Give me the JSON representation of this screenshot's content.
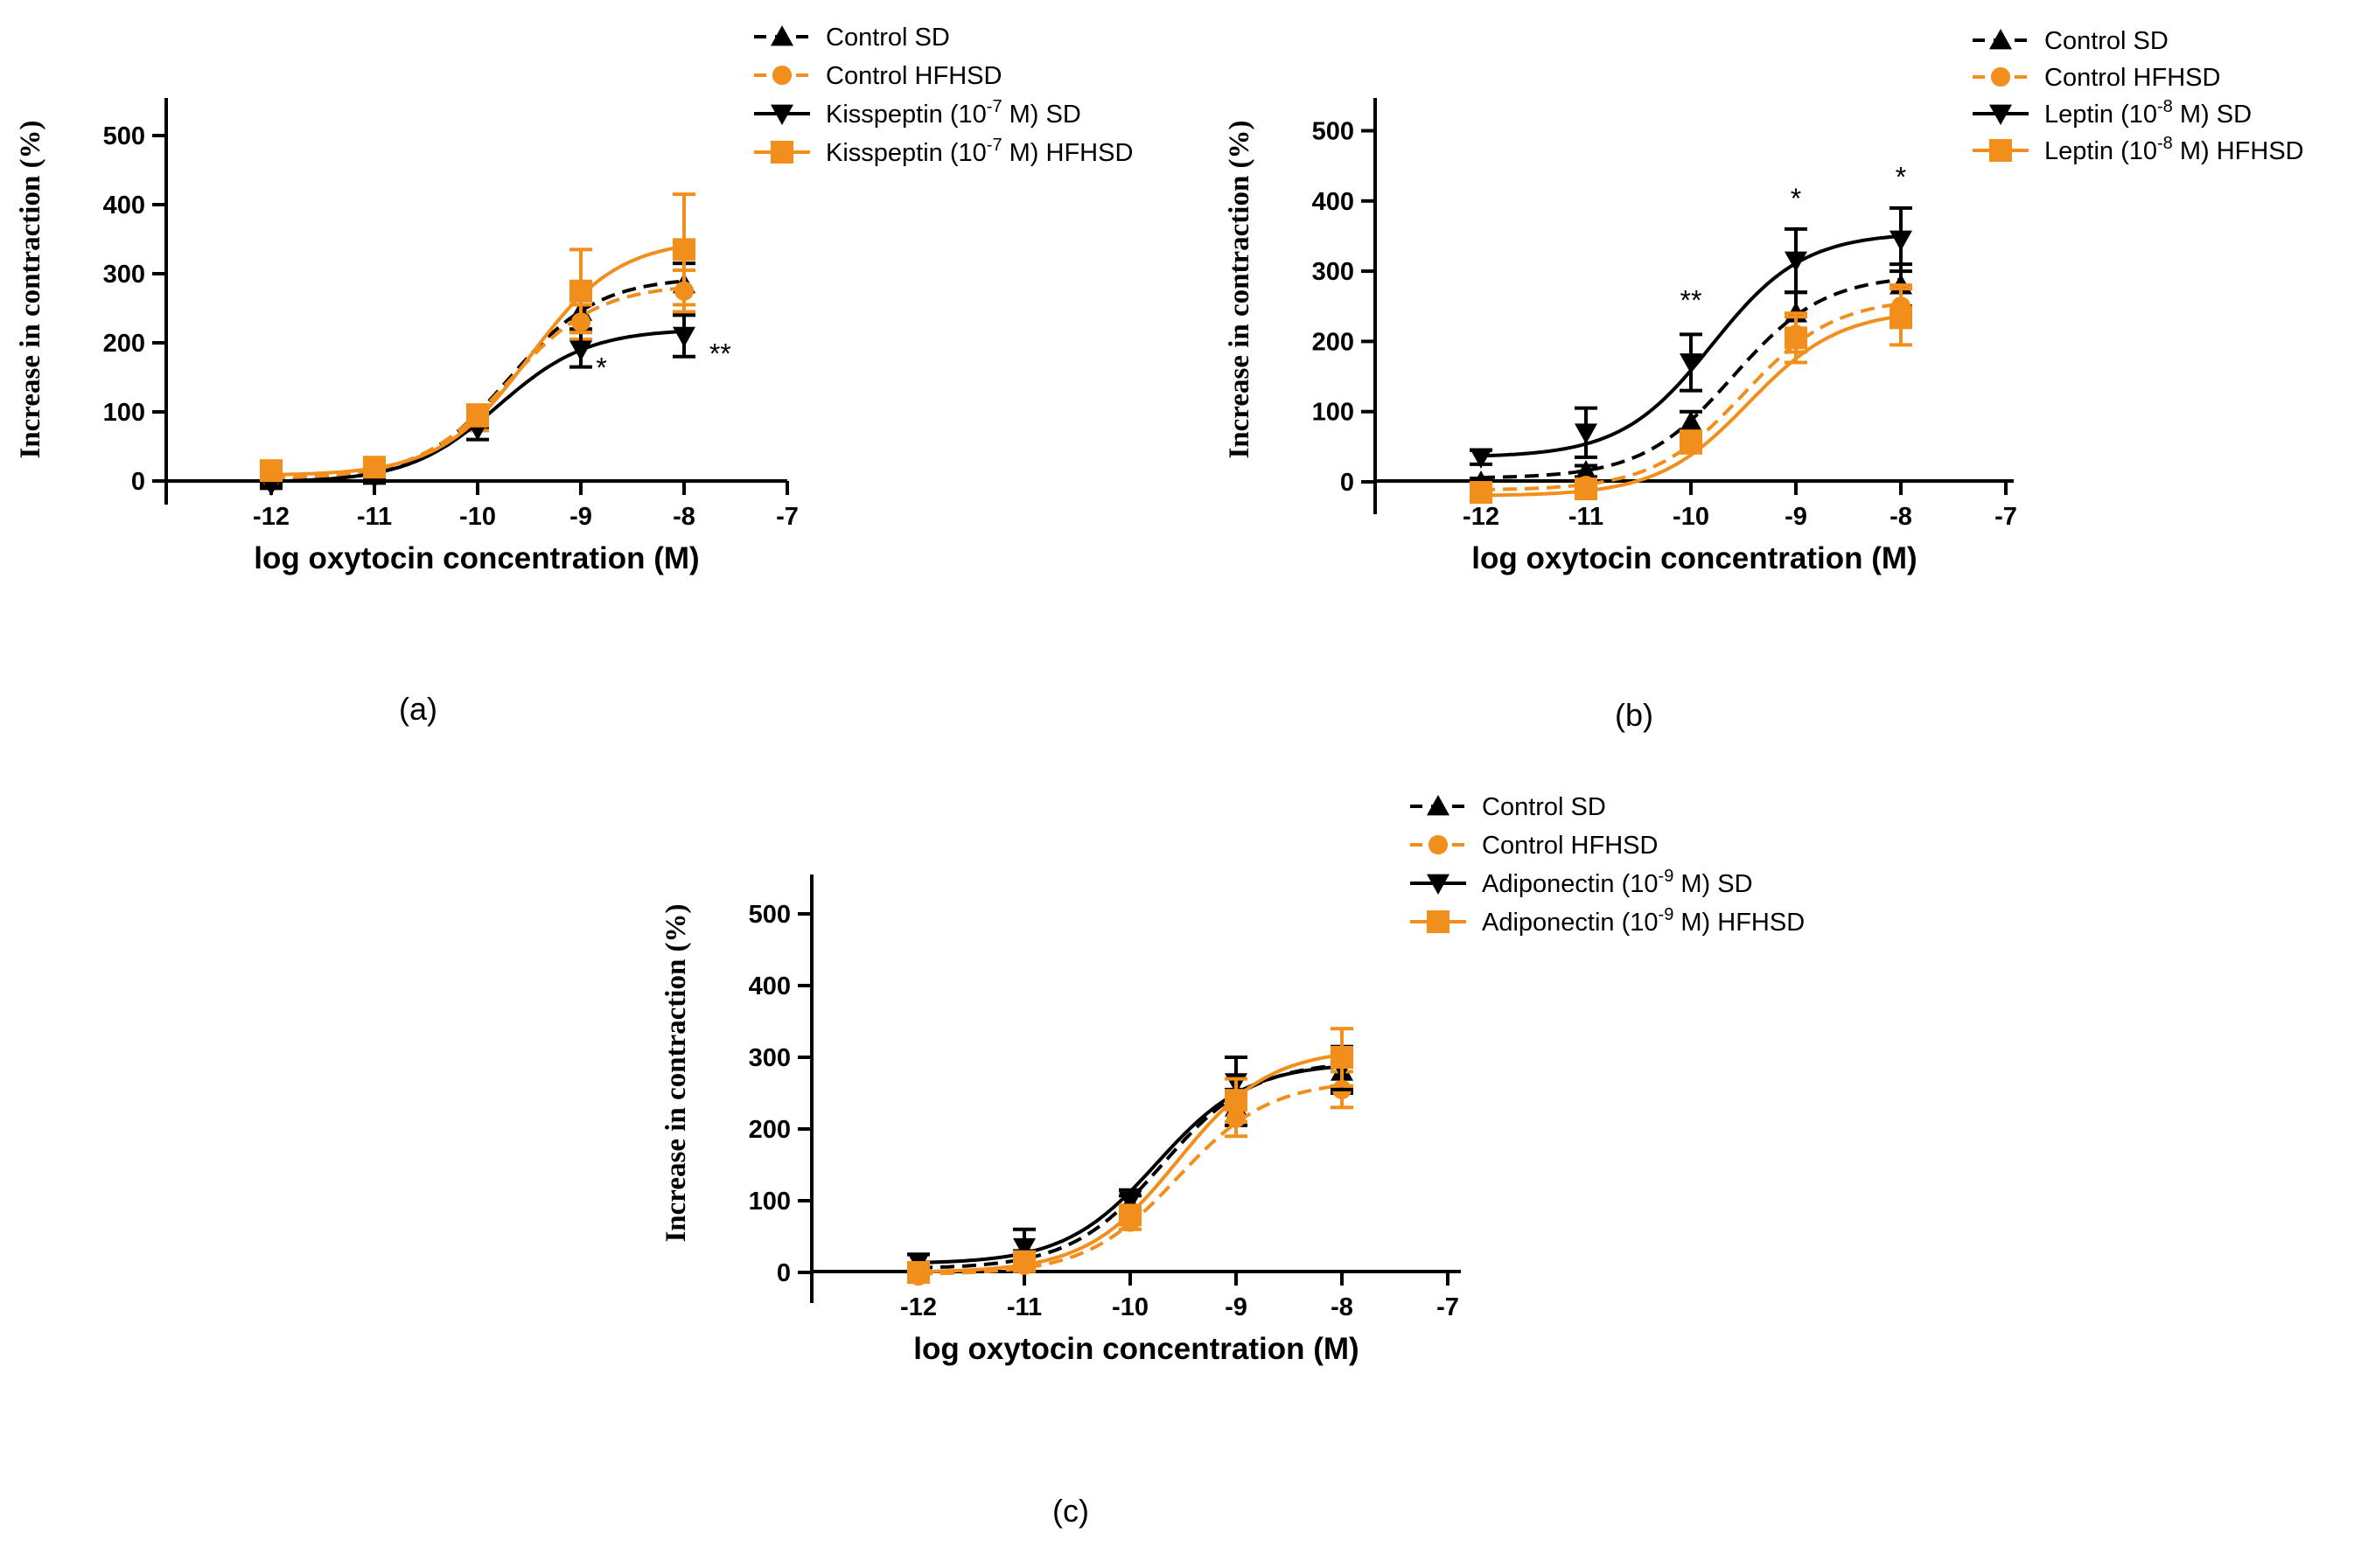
{
  "colors": {
    "sd": "#000000",
    "hfhsd": "#F28E1C"
  },
  "chart_data": [
    {
      "type": "line",
      "panel_label": "(a)",
      "xlabel": "log oxytocin concentration (M)",
      "ylabel": "Increase in contraction (%)",
      "xlim": [
        -13,
        -7
      ],
      "ylim": [
        -50,
        550
      ],
      "xticks": [
        "-12",
        "-11",
        "-10",
        "-9",
        "-8",
        "-7"
      ],
      "yticks": [
        "0",
        "100",
        "200",
        "300",
        "400",
        "500"
      ],
      "x": [
        -12,
        -11,
        -10,
        -9,
        -8
      ],
      "legend_position": "top-right",
      "series": [
        {
          "name": "Control  SD",
          "name_parts": [
            "Control  SD"
          ],
          "color": "#000000",
          "dash": true,
          "marker": "triangle-up",
          "values": [
            0,
            10,
            90,
            245,
            285
          ],
          "errors": [
            5,
            8,
            12,
            25,
            30
          ],
          "fit": {
            "bottom": 0,
            "top": 295,
            "ec50": -9.7,
            "hill": 1.0
          }
        },
        {
          "name": "Control HFHSD",
          "name_parts": [
            "Control HFHSD"
          ],
          "color": "#F28E1C",
          "dash": true,
          "marker": "circle",
          "values": [
            5,
            15,
            85,
            230,
            275
          ],
          "errors": [
            5,
            8,
            12,
            25,
            30
          ],
          "fit": {
            "bottom": 3,
            "top": 285,
            "ec50": -9.7,
            "hill": 1.0
          }
        },
        {
          "name": "Kisspeptin (10-7 M) SD",
          "name_parts": [
            "Kisspeptin (10",
            "-7",
            " M) SD"
          ],
          "color": "#000000",
          "dash": false,
          "marker": "triangle-down",
          "values": [
            -5,
            5,
            75,
            190,
            210
          ],
          "errors": [
            5,
            8,
            15,
            25,
            30
          ],
          "fit": {
            "bottom": -2,
            "top": 220,
            "ec50": -9.8,
            "hill": 1.0
          }
        },
        {
          "name": "Kisspeptin (10-7 M) HFHSD",
          "name_parts": [
            "Kisspeptin (10",
            "-7",
            " M) HFHSD"
          ],
          "color": "#F28E1C",
          "dash": false,
          "marker": "square",
          "values": [
            15,
            20,
            95,
            275,
            335
          ],
          "errors": [
            10,
            12,
            15,
            60,
            80
          ],
          "fit": {
            "bottom": 8,
            "top": 350,
            "ec50": -9.5,
            "hill": 1.0
          }
        }
      ],
      "annotations": [
        {
          "x": -8.8,
          "y": 150,
          "text": "*"
        },
        {
          "x": -7.65,
          "y": 170,
          "text": "**"
        }
      ]
    },
    {
      "type": "line",
      "panel_label": "(b)",
      "xlabel": "log oxytocin concentration (M)",
      "ylabel": "Increase in contraction (%)",
      "xlim": [
        -13,
        -7
      ],
      "ylim": [
        -50,
        550
      ],
      "xticks": [
        "-12",
        "-11",
        "-10",
        "-9",
        "-8",
        "-7"
      ],
      "yticks": [
        "0",
        "100",
        "200",
        "300",
        "400",
        "500"
      ],
      "x": [
        -12,
        -11,
        -10,
        -9,
        -8
      ],
      "legend_position": "top-right",
      "series": [
        {
          "name": "Control SD",
          "name_parts": [
            "Control SD"
          ],
          "color": "#000000",
          "dash": true,
          "marker": "triangle-up",
          "values": [
            0,
            15,
            85,
            240,
            280
          ],
          "errors": [
            5,
            8,
            15,
            30,
            30
          ],
          "fit": {
            "bottom": 5,
            "top": 295,
            "ec50": -9.6,
            "hill": 1.0
          }
        },
        {
          "name": "Control HFHSD",
          "name_parts": [
            "Control HFHSD"
          ],
          "color": "#F28E1C",
          "dash": true,
          "marker": "circle",
          "values": [
            -15,
            -5,
            60,
            210,
            250
          ],
          "errors": [
            5,
            8,
            12,
            25,
            30
          ],
          "fit": {
            "bottom": -12,
            "top": 262,
            "ec50": -9.5,
            "hill": 1.0
          }
        },
        {
          "name": "Leptin (10-8 M) SD",
          "name_parts": [
            "Leptin (10",
            "-8",
            " M) SD"
          ],
          "color": "#000000",
          "dash": false,
          "marker": "triangle-down",
          "values": [
            35,
            70,
            170,
            315,
            345
          ],
          "errors": [
            10,
            35,
            40,
            45,
            45
          ],
          "fit": {
            "bottom": 35,
            "top": 355,
            "ec50": -9.8,
            "hill": 1.0
          }
        },
        {
          "name": "Leptin (10-8 M) HFHSD",
          "name_parts": [
            "Leptin (10",
            "-8",
            " M) HFHSD"
          ],
          "color": "#F28E1C",
          "dash": false,
          "marker": "square",
          "values": [
            -15,
            -10,
            55,
            205,
            235
          ],
          "errors": [
            5,
            8,
            12,
            35,
            40
          ],
          "fit": {
            "bottom": -20,
            "top": 245,
            "ec50": -9.45,
            "hill": 1.0
          }
        }
      ],
      "annotations": [
        {
          "x": -10,
          "y": 245,
          "text": "**"
        },
        {
          "x": -9,
          "y": 390,
          "text": "*"
        },
        {
          "x": -8,
          "y": 420,
          "text": "*"
        }
      ]
    },
    {
      "type": "line",
      "panel_label": "(c)",
      "xlabel": "log oxytocin concentration (M)",
      "ylabel": "Increase in contraction (%)",
      "xlim": [
        -13,
        -7
      ],
      "ylim": [
        -50,
        550
      ],
      "xticks": [
        "-12",
        "-11",
        "-10",
        "-9",
        "-8",
        "-7"
      ],
      "yticks": [
        "0",
        "100",
        "200",
        "300",
        "400",
        "500"
      ],
      "x": [
        -12,
        -11,
        -10,
        -9,
        -8
      ],
      "legend_position": "top-right",
      "series": [
        {
          "name": "Control SD",
          "name_parts": [
            "Control SD"
          ],
          "color": "#000000",
          "dash": true,
          "marker": "triangle-up",
          "values": [
            5,
            20,
            95,
            230,
            280
          ],
          "errors": [
            5,
            10,
            12,
            25,
            30
          ],
          "fit": {
            "bottom": 5,
            "top": 295,
            "ec50": -9.7,
            "hill": 1.0
          }
        },
        {
          "name": "Control HFHSD",
          "name_parts": [
            "Control HFHSD"
          ],
          "color": "#F28E1C",
          "dash": true,
          "marker": "circle",
          "values": [
            -5,
            10,
            70,
            215,
            255
          ],
          "errors": [
            5,
            8,
            10,
            25,
            25
          ],
          "fit": {
            "bottom": -3,
            "top": 268,
            "ec50": -9.55,
            "hill": 1.0
          }
        },
        {
          "name": "Adiponectin (10-9 M) SD",
          "name_parts": [
            "Adiponectin (10",
            "-9",
            " M) SD"
          ],
          "color": "#000000",
          "dash": false,
          "marker": "triangle-down",
          "values": [
            15,
            35,
            100,
            265,
            285
          ],
          "errors": [
            10,
            25,
            15,
            35,
            30
          ],
          "fit": {
            "bottom": 12,
            "top": 292,
            "ec50": -9.75,
            "hill": 1.0
          }
        },
        {
          "name": "Adiponectin (10-9 M) HFHSD",
          "name_parts": [
            "Adiponectin (10",
            "-9",
            " M) HFHSD"
          ],
          "color": "#F28E1C",
          "dash": false,
          "marker": "square",
          "values": [
            0,
            15,
            80,
            240,
            300
          ],
          "errors": [
            5,
            10,
            12,
            30,
            40
          ],
          "fit": {
            "bottom": 0,
            "top": 312,
            "ec50": -9.55,
            "hill": 1.0
          }
        }
      ],
      "annotations": []
    }
  ]
}
